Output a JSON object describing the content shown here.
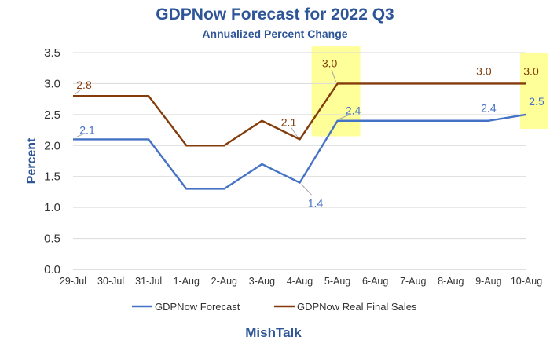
{
  "chart_data": {
    "type": "line",
    "title": "GDPNow Forecast for 2022 Q3",
    "subtitle": "Annualized Percent Change",
    "ylabel": "Percent",
    "xlabel": "",
    "categories": [
      "29-Jul",
      "30-Jul",
      "31-Jul",
      "1-Aug",
      "2-Aug",
      "3-Aug",
      "4-Aug",
      "5-Aug",
      "6-Aug",
      "7-Aug",
      "8-Aug",
      "9-Aug",
      "10-Aug"
    ],
    "ylim": [
      0,
      3.5
    ],
    "yticks": [
      "0.0",
      "0.5",
      "1.0",
      "1.5",
      "2.0",
      "2.5",
      "3.0",
      "3.5"
    ],
    "grid": true,
    "legend_position": "bottom",
    "series": [
      {
        "name": "GDPNow Forecast",
        "color": "#4472c4",
        "values": [
          2.1,
          2.1,
          2.1,
          1.3,
          1.3,
          1.7,
          1.4,
          2.4,
          2.4,
          2.4,
          2.4,
          2.4,
          2.5
        ],
        "labels": [
          {
            "index": 0,
            "text": "2.1"
          },
          {
            "index": 6,
            "text": "1.4"
          },
          {
            "index": 7,
            "text": "2.4"
          },
          {
            "index": 11,
            "text": "2.4"
          },
          {
            "index": 12,
            "text": "2.5"
          }
        ]
      },
      {
        "name": "GDPNow Real Final Sales",
        "color": "#843c0c",
        "values": [
          2.8,
          2.8,
          2.8,
          2.0,
          2.0,
          2.4,
          2.1,
          3.0,
          3.0,
          3.0,
          3.0,
          3.0,
          3.0
        ],
        "labels": [
          {
            "index": 0,
            "text": "2.8"
          },
          {
            "index": 6,
            "text": "2.1"
          },
          {
            "index": 7,
            "text": "3.0"
          },
          {
            "index": 11,
            "text": "3.0"
          },
          {
            "index": 12,
            "text": "3.0"
          }
        ]
      }
    ],
    "highlights": [
      {
        "category": "5-Aug",
        "color": "#ffff99"
      },
      {
        "category": "10-Aug",
        "color": "#ffff99"
      }
    ],
    "source": "MishTalk"
  }
}
